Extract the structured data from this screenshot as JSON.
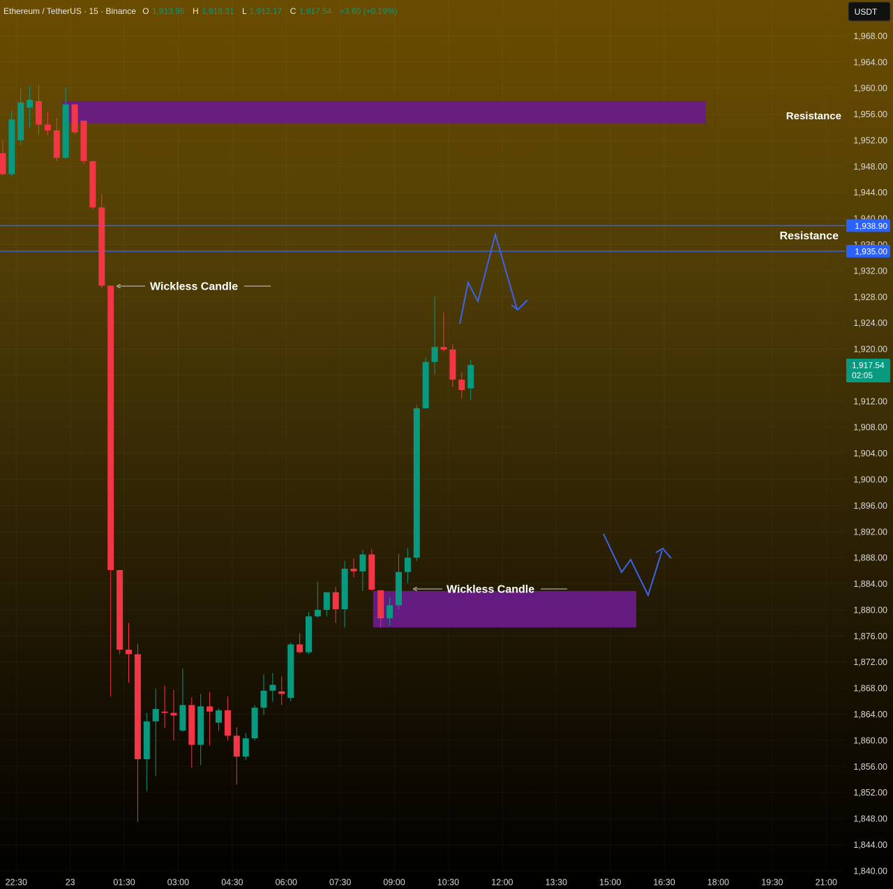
{
  "header": {
    "symbol": "Ethereum / TetherUS · 15 · Binance",
    "o_label": "O",
    "o_value": "1,913.95",
    "h_label": "H",
    "h_value": "1,918.31",
    "l_label": "L",
    "l_value": "1,912.17",
    "c_label": "C",
    "c_value": "1,917.54",
    "change": "+3.60 (+0.19%)"
  },
  "currency_badge": "USDT",
  "price_badges": [
    {
      "price": 1938.9,
      "label": "1,938.90"
    },
    {
      "price": 1935.0,
      "label": "1,935.00"
    }
  ],
  "last_price": {
    "price": 1917.54,
    "label": "1,917.54",
    "countdown": "02:05"
  },
  "annotations": {
    "resistance_top": "Resistance",
    "resistance_mid": "Resistance",
    "wickless_1": "Wickless Candle",
    "wickless_2": "Wickless Candle"
  },
  "zones": [
    {
      "name": "resistance-zone",
      "from_bar": 7,
      "to_index": 78.1,
      "low": 1954.6,
      "high": 1958.0
    },
    {
      "name": "wickless-zone",
      "from_bar": 41.5,
      "to_index": 70.4,
      "low": 1877.3,
      "high": 1882.9
    }
  ],
  "horizontal_lines": [
    1938.9,
    1935.0
  ],
  "colors": {
    "up": "#089981",
    "down": "#f23645",
    "zone": "#6a1b8a",
    "line": "#2962ff",
    "badge_last": "#089981",
    "badge_line": "#2962ff"
  },
  "chart_data": {
    "type": "candlestick",
    "title": "Ethereum / TetherUS · 15 · Binance",
    "xlabel": "",
    "ylabel": "",
    "ylim": [
      1837.2,
      1973.5
    ],
    "y_ticks": [
      1968,
      1964,
      1960,
      1956,
      1952,
      1948,
      1944,
      1940,
      1936,
      1932,
      1928,
      1924,
      1920,
      1916,
      1912,
      1908,
      1904,
      1900,
      1896,
      1892,
      1888,
      1884,
      1880,
      1876,
      1872,
      1868,
      1864,
      1860,
      1856,
      1852,
      1848,
      1844,
      1840
    ],
    "y_tick_labels_visible": [
      "1,968.00",
      "1,964.00",
      "1,960.00",
      "1,956.00",
      "1,952.00",
      "1,948.00",
      "1,944.00",
      "1,940.00",
      "1,936.00",
      "1,932.00",
      "1,928.00",
      "1,924.00",
      "1,920.00",
      "1,912.00",
      "1,908.00",
      "1,904.00",
      "1,900.00",
      "1,896.00",
      "1,892.00",
      "1,888.00",
      "1,884.00",
      "1,880.00",
      "1,876.00",
      "1,872.00",
      "1,868.00",
      "1,864.00",
      "1,860.00",
      "1,856.00",
      "1,852.00",
      "1,848.00",
      "1,844.00",
      "1,840.00"
    ],
    "x_ticks": [
      {
        "index": 1.5,
        "label": "22:30"
      },
      {
        "index": 7.5,
        "label": "23"
      },
      {
        "index": 13.5,
        "label": "01:30"
      },
      {
        "index": 19.5,
        "label": "03:00"
      },
      {
        "index": 25.5,
        "label": "04:30"
      },
      {
        "index": 31.5,
        "label": "06:00"
      },
      {
        "index": 37.5,
        "label": "07:30"
      },
      {
        "index": 43.5,
        "label": "09:00"
      },
      {
        "index": 49.5,
        "label": "10:30"
      },
      {
        "index": 55.5,
        "label": "12:00"
      },
      {
        "index": 61.5,
        "label": "13:30"
      },
      {
        "index": 67.5,
        "label": "15:00"
      },
      {
        "index": 73.5,
        "label": "16:30"
      },
      {
        "index": 79.5,
        "label": "18:00"
      },
      {
        "index": 85.5,
        "label": "19:30"
      },
      {
        "index": 91.5,
        "label": "21:00"
      }
    ],
    "candles": [
      {
        "o": 1950.0,
        "h": 1952.0,
        "l": 1946.6,
        "c": 1946.8
      },
      {
        "o": 1946.8,
        "h": 1956.5,
        "l": 1946.5,
        "c": 1955.2
      },
      {
        "o": 1952.0,
        "h": 1960.0,
        "l": 1951.2,
        "c": 1957.8
      },
      {
        "o": 1957.0,
        "h": 1960.3,
        "l": 1954.0,
        "c": 1958.2
      },
      {
        "o": 1958.0,
        "h": 1960.5,
        "l": 1952.9,
        "c": 1954.4
      },
      {
        "o": 1954.4,
        "h": 1956.4,
        "l": 1952.8,
        "c": 1953.5
      },
      {
        "o": 1953.5,
        "h": 1955.4,
        "l": 1948.8,
        "c": 1949.3
      },
      {
        "o": 1949.3,
        "h": 1960.1,
        "l": 1949.2,
        "c": 1957.5
      },
      {
        "o": 1957.5,
        "h": 1957.5,
        "l": 1952.9,
        "c": 1953.2
      },
      {
        "o": 1955.0,
        "h": 1955.0,
        "l": 1948.3,
        "c": 1948.8
      },
      {
        "o": 1948.8,
        "h": 1948.8,
        "l": 1941.4,
        "c": 1941.7
      },
      {
        "o": 1941.7,
        "h": 1943.7,
        "l": 1929.3,
        "c": 1929.7
      },
      {
        "o": 1929.7,
        "h": 1929.7,
        "l": 1866.7,
        "c": 1886.1
      },
      {
        "o": 1886.1,
        "h": 1886.1,
        "l": 1873.2,
        "c": 1873.9
      },
      {
        "o": 1873.9,
        "h": 1878.0,
        "l": 1868.8,
        "c": 1873.2
      },
      {
        "o": 1873.2,
        "h": 1874.8,
        "l": 1847.5,
        "c": 1857.1
      },
      {
        "o": 1857.1,
        "h": 1864.2,
        "l": 1852.2,
        "c": 1862.9
      },
      {
        "o": 1862.9,
        "h": 1867.9,
        "l": 1854.5,
        "c": 1864.8
      },
      {
        "o": 1864.4,
        "h": 1868.4,
        "l": 1861.9,
        "c": 1864.2
      },
      {
        "o": 1864.2,
        "h": 1867.7,
        "l": 1860.0,
        "c": 1863.8
      },
      {
        "o": 1861.5,
        "h": 1871.0,
        "l": 1861.3,
        "c": 1865.4
      },
      {
        "o": 1865.4,
        "h": 1866.6,
        "l": 1855.8,
        "c": 1859.3
      },
      {
        "o": 1859.3,
        "h": 1867.1,
        "l": 1856.2,
        "c": 1865.2
      },
      {
        "o": 1865.2,
        "h": 1867.4,
        "l": 1859.2,
        "c": 1864.4
      },
      {
        "o": 1862.7,
        "h": 1864.9,
        "l": 1861.4,
        "c": 1864.6
      },
      {
        "o": 1864.6,
        "h": 1866.7,
        "l": 1860.0,
        "c": 1860.7
      },
      {
        "o": 1860.7,
        "h": 1862.0,
        "l": 1853.2,
        "c": 1857.5
      },
      {
        "o": 1857.5,
        "h": 1861.1,
        "l": 1857.0,
        "c": 1860.3
      },
      {
        "o": 1860.3,
        "h": 1865.4,
        "l": 1860.0,
        "c": 1865.0
      },
      {
        "o": 1865.0,
        "h": 1870.1,
        "l": 1863.9,
        "c": 1867.6
      },
      {
        "o": 1867.6,
        "h": 1870.3,
        "l": 1865.9,
        "c": 1868.5
      },
      {
        "o": 1867.5,
        "h": 1869.8,
        "l": 1865.4,
        "c": 1867.1
      },
      {
        "o": 1866.5,
        "h": 1875.0,
        "l": 1866.0,
        "c": 1874.7
      },
      {
        "o": 1874.7,
        "h": 1876.4,
        "l": 1873.3,
        "c": 1873.5
      },
      {
        "o": 1873.5,
        "h": 1879.7,
        "l": 1873.2,
        "c": 1879.0
      },
      {
        "o": 1879.0,
        "h": 1884.3,
        "l": 1878.8,
        "c": 1880.0
      },
      {
        "o": 1880.0,
        "h": 1882.7,
        "l": 1879.0,
        "c": 1882.7
      },
      {
        "o": 1882.7,
        "h": 1883.5,
        "l": 1878.0,
        "c": 1880.1
      },
      {
        "o": 1880.1,
        "h": 1887.5,
        "l": 1877.3,
        "c": 1886.3
      },
      {
        "o": 1886.3,
        "h": 1887.9,
        "l": 1885.0,
        "c": 1885.9
      },
      {
        "o": 1885.9,
        "h": 1889.2,
        "l": 1882.9,
        "c": 1888.5
      },
      {
        "o": 1888.5,
        "h": 1889.3,
        "l": 1882.9,
        "c": 1883.1
      },
      {
        "o": 1883.0,
        "h": 1883.0,
        "l": 1877.3,
        "c": 1878.7
      },
      {
        "o": 1878.7,
        "h": 1881.9,
        "l": 1877.6,
        "c": 1880.7
      },
      {
        "o": 1880.7,
        "h": 1888.6,
        "l": 1880.0,
        "c": 1885.8
      },
      {
        "o": 1885.8,
        "h": 1889.4,
        "l": 1884.1,
        "c": 1888.0
      },
      {
        "o": 1888.0,
        "h": 1911.4,
        "l": 1887.5,
        "c": 1910.9
      },
      {
        "o": 1910.9,
        "h": 1918.7,
        "l": 1910.9,
        "c": 1918.0
      },
      {
        "o": 1918.0,
        "h": 1928.0,
        "l": 1916.1,
        "c": 1920.3
      },
      {
        "o": 1920.3,
        "h": 1925.6,
        "l": 1919.6,
        "c": 1919.9
      },
      {
        "o": 1919.9,
        "h": 1920.7,
        "l": 1914.2,
        "c": 1915.3
      },
      {
        "o": 1915.3,
        "h": 1916.4,
        "l": 1912.4,
        "c": 1913.7
      },
      {
        "o": 1913.95,
        "h": 1918.31,
        "l": 1912.17,
        "c": 1917.54
      }
    ]
  }
}
